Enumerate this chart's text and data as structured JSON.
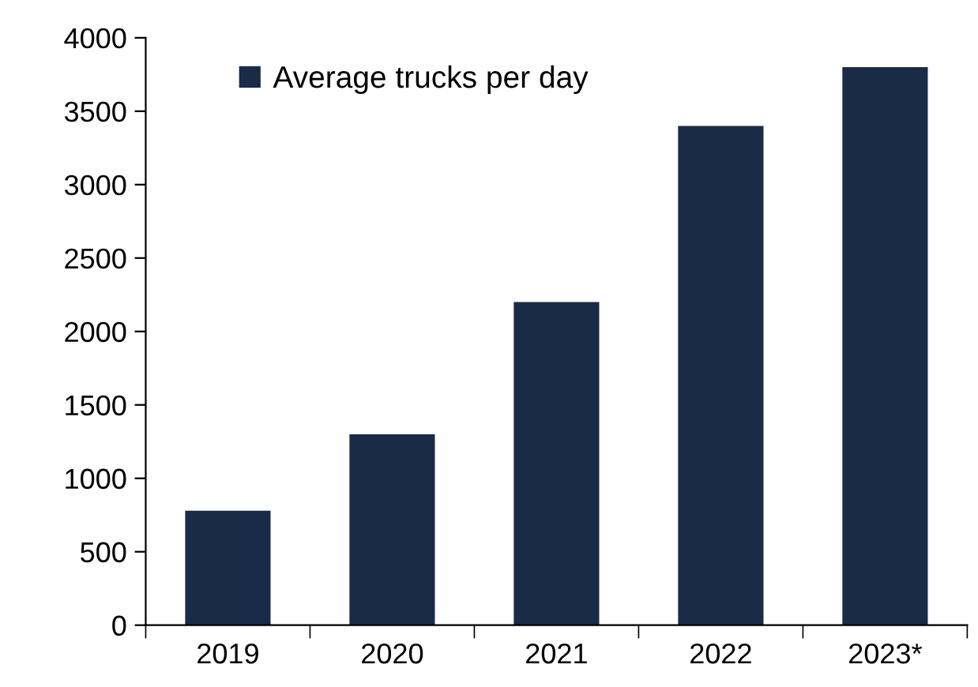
{
  "chart_data": {
    "type": "bar",
    "categories": [
      "2019",
      "2020",
      "2021",
      "2022",
      "2023*"
    ],
    "series": [
      {
        "name": "Average trucks per day",
        "color": "#1a2b48",
        "values": [
          780,
          1300,
          2200,
          3400,
          3800
        ]
      }
    ],
    "ylim": [
      0,
      4000
    ],
    "yticks": [
      0,
      500,
      1000,
      1500,
      2000,
      2500,
      3000,
      3500,
      4000
    ],
    "grid": false,
    "legend": "top left"
  }
}
